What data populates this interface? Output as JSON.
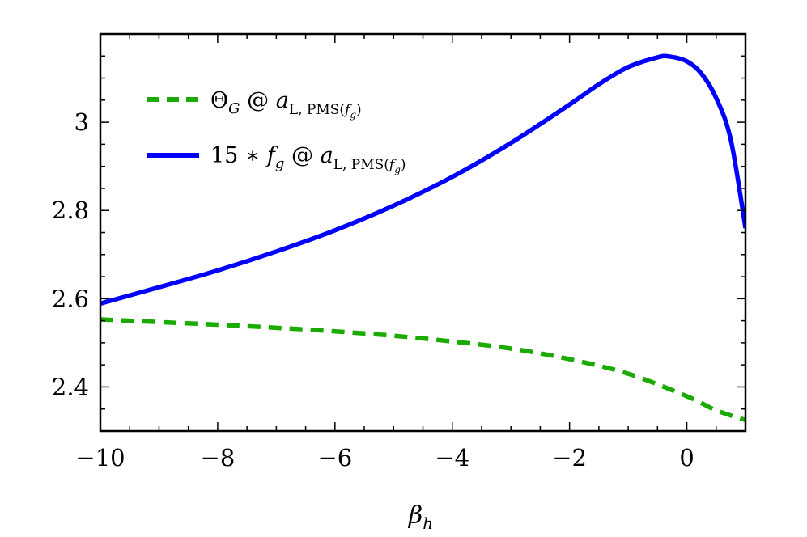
{
  "chart_data": {
    "type": "line",
    "title": "",
    "xlabel": "β_h",
    "ylabel": "",
    "xlim": [
      -10,
      1
    ],
    "ylim": [
      2.3,
      3.2
    ],
    "x_ticks": [
      -10,
      -8,
      -6,
      -4,
      -2,
      0
    ],
    "x_tick_labels": [
      "−10",
      "−8",
      "−6",
      "−4",
      "−2",
      "0"
    ],
    "y_ticks": [
      2.4,
      2.6,
      2.8,
      3.0
    ],
    "y_tick_labels": [
      "2.4",
      "2.6",
      "2.8",
      "3"
    ],
    "legend_position": "top-left",
    "grid": false,
    "series": [
      {
        "name": "Θ_G @ a_{L, PMS(f_g)}",
        "legend_text": "ΘG @ aL, PMS(fg)",
        "style": "dashed",
        "color": "#1aaa00",
        "x": [
          -10,
          -9,
          -8,
          -7,
          -6,
          -5,
          -4,
          -3,
          -2,
          -1,
          0,
          0.5,
          1
        ],
        "y": [
          2.553,
          2.547,
          2.541,
          2.534,
          2.526,
          2.516,
          2.503,
          2.487,
          2.463,
          2.43,
          2.379,
          2.347,
          2.325
        ]
      },
      {
        "name": "15 * f_g @ a_{L, PMS(f_g)}",
        "legend_text": "15 ∗ fg @ aL, PMS(fg)",
        "style": "solid",
        "color": "#0000ff",
        "x": [
          -10,
          -9,
          -8,
          -7,
          -6,
          -5,
          -4,
          -3,
          -2,
          -1.5,
          -1,
          -0.5,
          -0.3,
          0,
          0.25,
          0.5,
          0.75,
          1
        ],
        "y": [
          2.589,
          2.626,
          2.664,
          2.707,
          2.755,
          2.811,
          2.876,
          2.953,
          3.04,
          3.086,
          3.125,
          3.147,
          3.149,
          3.138,
          3.11,
          3.055,
          2.96,
          2.76
        ]
      }
    ]
  }
}
